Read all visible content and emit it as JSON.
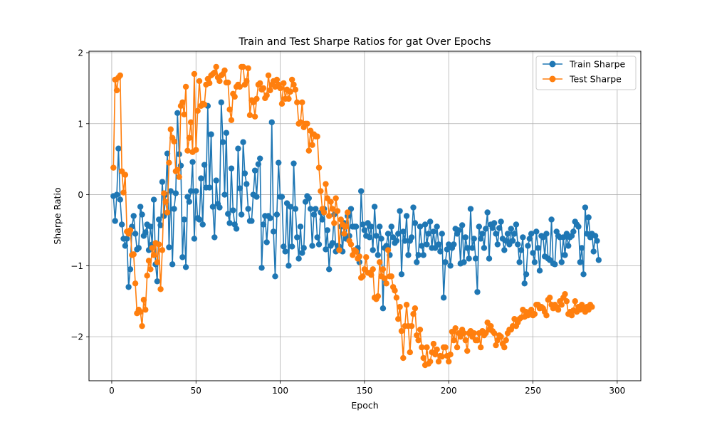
{
  "chart_data": {
    "type": "line",
    "title": "Train and Test Sharpe Ratios for gat Over Epochs",
    "xlabel": "Epoch",
    "ylabel": "Sharpe Ratio",
    "xlim": [
      -13.5,
      314
    ],
    "ylim": [
      -2.62,
      2.02
    ],
    "x_ticks": [
      0,
      50,
      100,
      150,
      200,
      250,
      300
    ],
    "y_ticks": [
      -2,
      -1,
      0,
      1,
      2
    ],
    "y_tick_labels": [
      "−2",
      "−1",
      "0",
      "1",
      "2"
    ],
    "grid": true,
    "legend_position": "top-right",
    "colors": {
      "train": "#1f77b4",
      "test": "#ff7f0e"
    },
    "x_start": 1,
    "x_step": 1,
    "series": [
      {
        "name": "Train Sharpe",
        "color": "#1f77b4",
        "values": [
          -0.02,
          -0.37,
          0.0,
          0.65,
          -0.07,
          -0.42,
          -0.62,
          -0.72,
          -0.62,
          -1.3,
          -1.05,
          -0.45,
          -0.3,
          -0.55,
          -0.77,
          -0.75,
          -0.17,
          -0.28,
          -0.58,
          -0.53,
          -0.42,
          -0.78,
          -0.45,
          -0.7,
          -0.07,
          -0.98,
          -1.22,
          -0.35,
          -0.43,
          0.18,
          -0.3,
          0.0,
          0.58,
          -0.74,
          0.05,
          -0.98,
          -0.2,
          0.02,
          1.15,
          0.57,
          0.41,
          -0.88,
          -0.35,
          -1.02,
          -0.03,
          -0.1,
          0.05,
          0.46,
          -0.62,
          0.05,
          -0.33,
          -0.35,
          0.23,
          -0.42,
          0.42,
          0.1,
          1.25,
          0.1,
          0.85,
          -0.17,
          -0.6,
          0.2,
          -0.13,
          -0.18,
          1.3,
          0.74,
          0.0,
          0.87,
          -0.27,
          -0.4,
          0.37,
          -0.22,
          -0.42,
          -0.48,
          0.65,
          0.09,
          -0.28,
          0.74,
          0.3,
          0.15,
          -0.2,
          -0.37,
          -0.37,
          0.0,
          0.34,
          -0.03,
          0.43,
          0.51,
          -1.03,
          -0.42,
          -0.3,
          -0.67,
          -0.3,
          -0.33,
          1.02,
          -0.52,
          -1.15,
          -0.28,
          0.45,
          -0.03,
          -0.03,
          -0.73,
          -0.8,
          -0.12,
          -1.0,
          -0.17,
          -0.73,
          0.44,
          -0.2,
          -0.6,
          -0.9,
          -0.45,
          -0.82,
          -0.75,
          -0.1,
          -0.02,
          -0.05,
          -0.2,
          -0.72,
          -0.28,
          -0.2,
          -0.6,
          -0.7,
          -0.25,
          -0.35,
          -0.2,
          -0.77,
          -0.5,
          -1.05,
          -0.72,
          -0.68,
          -0.28,
          -0.8,
          -0.72,
          -0.73,
          -0.45,
          -0.8,
          -0.4,
          -0.62,
          -0.3,
          -0.58,
          -0.2,
          -0.45,
          -0.45,
          -0.45,
          -0.75,
          -0.95,
          0.05,
          -0.42,
          -0.5,
          -0.58,
          -0.4,
          -0.6,
          -0.45,
          -0.78,
          -0.17,
          -0.58,
          -0.85,
          -0.45,
          -0.62,
          -1.6,
          -0.75,
          -0.72,
          -0.55,
          -0.85,
          -0.45,
          -0.6,
          -0.68,
          -0.65,
          -0.55,
          -0.23,
          -1.12,
          -0.52,
          -0.65,
          -0.3,
          -0.85,
          -0.65,
          -0.6,
          -0.18,
          -0.4,
          -0.95,
          -0.85,
          -0.45,
          -0.72,
          -0.85,
          -0.42,
          -0.7,
          -0.55,
          -0.38,
          -0.75,
          -0.52,
          -0.75,
          -0.45,
          -0.7,
          -0.8,
          -0.55,
          -1.45,
          -0.95,
          -0.77,
          -0.7,
          -1.0,
          -0.75,
          -0.7,
          -0.48,
          -0.55,
          -0.5,
          -0.97,
          -0.43,
          -0.95,
          -0.6,
          -0.75,
          -0.9,
          -0.2,
          -0.75,
          -0.62,
          -0.9,
          -1.37,
          -0.45,
          -0.62,
          -0.55,
          -0.75,
          -0.48,
          -0.25,
          -0.9,
          -0.42,
          -0.47,
          -0.4,
          -0.55,
          -0.7,
          -0.47,
          -0.38,
          -0.62,
          -0.78,
          -0.65,
          -0.55,
          -0.7,
          -0.48,
          -0.65,
          -0.55,
          -0.42,
          -0.7,
          -0.95,
          -0.78,
          -0.6,
          -1.25,
          -1.12,
          -0.72,
          -0.62,
          -0.55,
          -0.82,
          -0.95,
          -0.52,
          -0.75,
          -1.07,
          -0.58,
          -0.6,
          -0.87,
          -0.55,
          -0.9,
          -0.92,
          -0.35,
          -0.97,
          -0.98,
          -0.52,
          -0.58,
          -0.6,
          -0.95,
          -0.6,
          -0.85,
          -0.55,
          -0.72,
          -0.6,
          -0.58,
          -0.52,
          -0.38,
          -0.42,
          -0.45,
          -0.95,
          -0.75,
          -1.12,
          -0.18,
          -0.55,
          -0.32,
          -0.6,
          -0.55,
          -0.8,
          -0.58,
          -0.65,
          -0.92
        ]
      },
      {
        "name": "Test Sharpe",
        "color": "#ff7f0e",
        "values": [
          0.38,
          1.62,
          1.47,
          1.65,
          1.68,
          0.33,
          0.03,
          0.28,
          -0.52,
          -0.55,
          -0.5,
          -0.85,
          -0.84,
          -1.25,
          -1.67,
          -1.62,
          -1.65,
          -1.85,
          -1.48,
          -1.62,
          -1.14,
          -0.93,
          -1.05,
          -0.75,
          -0.85,
          -0.68,
          -0.95,
          -0.7,
          -1.33,
          -0.78,
          0.02,
          -0.1,
          -0.25,
          0.45,
          0.92,
          0.8,
          0.75,
          0.33,
          0.35,
          0.25,
          1.25,
          1.3,
          1.13,
          1.52,
          0.62,
          0.8,
          1.02,
          0.6,
          1.7,
          0.63,
          1.18,
          1.6,
          1.25,
          1.28,
          1.27,
          1.55,
          1.63,
          1.57,
          1.68,
          1.7,
          1.72,
          1.8,
          1.65,
          1.6,
          1.68,
          1.7,
          1.75,
          1.58,
          1.58,
          1.2,
          1.05,
          1.42,
          1.38,
          1.52,
          1.55,
          1.52,
          1.8,
          1.8,
          1.55,
          1.6,
          1.78,
          1.12,
          1.33,
          1.3,
          1.1,
          1.35,
          1.55,
          1.57,
          1.48,
          1.5,
          1.36,
          1.4,
          1.68,
          1.47,
          1.55,
          1.6,
          1.52,
          1.62,
          1.55,
          1.5,
          1.28,
          1.57,
          1.35,
          1.48,
          1.35,
          1.45,
          1.62,
          1.55,
          1.48,
          1.3,
          1.0,
          1.02,
          1.3,
          0.95,
          1.0,
          1.0,
          0.62,
          0.9,
          0.7,
          0.85,
          0.82,
          0.82,
          0.38,
          0.05,
          -0.2,
          -0.25,
          0.15,
          -0.05,
          -0.3,
          -0.1,
          -0.2,
          -0.4,
          -0.05,
          -0.23,
          -0.78,
          -0.35,
          -0.42,
          -0.55,
          -0.45,
          -0.25,
          -0.65,
          -0.7,
          -0.85,
          -0.78,
          -0.8,
          -0.9,
          -0.87,
          -1.17,
          -1.15,
          -1.05,
          -0.88,
          -1.1,
          -1.1,
          -1.13,
          -1.05,
          -1.45,
          -1.47,
          -1.43,
          -0.95,
          -1.15,
          -1.05,
          -1.18,
          -1.25,
          -0.78,
          -1.15,
          -1.15,
          -1.3,
          -1.35,
          -1.45,
          -1.75,
          -1.58,
          -1.92,
          -2.3,
          -1.85,
          -1.55,
          -1.85,
          -2.22,
          -1.85,
          -1.68,
          -1.6,
          -1.98,
          -2.05,
          -1.9,
          -2.15,
          -2.3,
          -2.4,
          -2.15,
          -2.38,
          -2.35,
          -2.22,
          -2.1,
          -2.25,
          -2.18,
          -2.35,
          -2.27,
          -2.28,
          -2.15,
          -2.15,
          -2.27,
          -2.35,
          -2.25,
          -1.93,
          -2.05,
          -1.88,
          -2.15,
          -1.95,
          -2.0,
          -1.9,
          -1.95,
          -2.05,
          -2.2,
          -1.95,
          -1.92,
          -2.0,
          -1.95,
          -2.05,
          -2.05,
          -1.95,
          -2.15,
          -1.92,
          -1.98,
          -1.95,
          -1.8,
          -1.9,
          -1.85,
          -1.92,
          -1.95,
          -2.12,
          -2.05,
          -1.98,
          -2.0,
          -2.1,
          -2.15,
          -2.05,
          -1.95,
          -1.9,
          -1.9,
          -1.85,
          -1.75,
          -1.85,
          -1.8,
          -1.75,
          -1.73,
          -1.62,
          -1.72,
          -1.65,
          -1.7,
          -1.68,
          -1.62,
          -1.7,
          -1.68,
          -1.55,
          -1.55,
          -1.6,
          -1.58,
          -1.6,
          -1.65,
          -1.7,
          -1.48,
          -1.45,
          -1.55,
          -1.6,
          -1.55,
          -1.58,
          -1.62,
          -1.5,
          -1.55,
          -1.45,
          -1.4,
          -1.5,
          -1.68,
          -1.65,
          -1.7,
          -1.63,
          -1.5,
          -1.65,
          -1.58,
          -1.62,
          -1.55,
          -1.6,
          -1.65,
          -1.58,
          -1.62,
          -1.55,
          -1.58
        ]
      }
    ]
  }
}
